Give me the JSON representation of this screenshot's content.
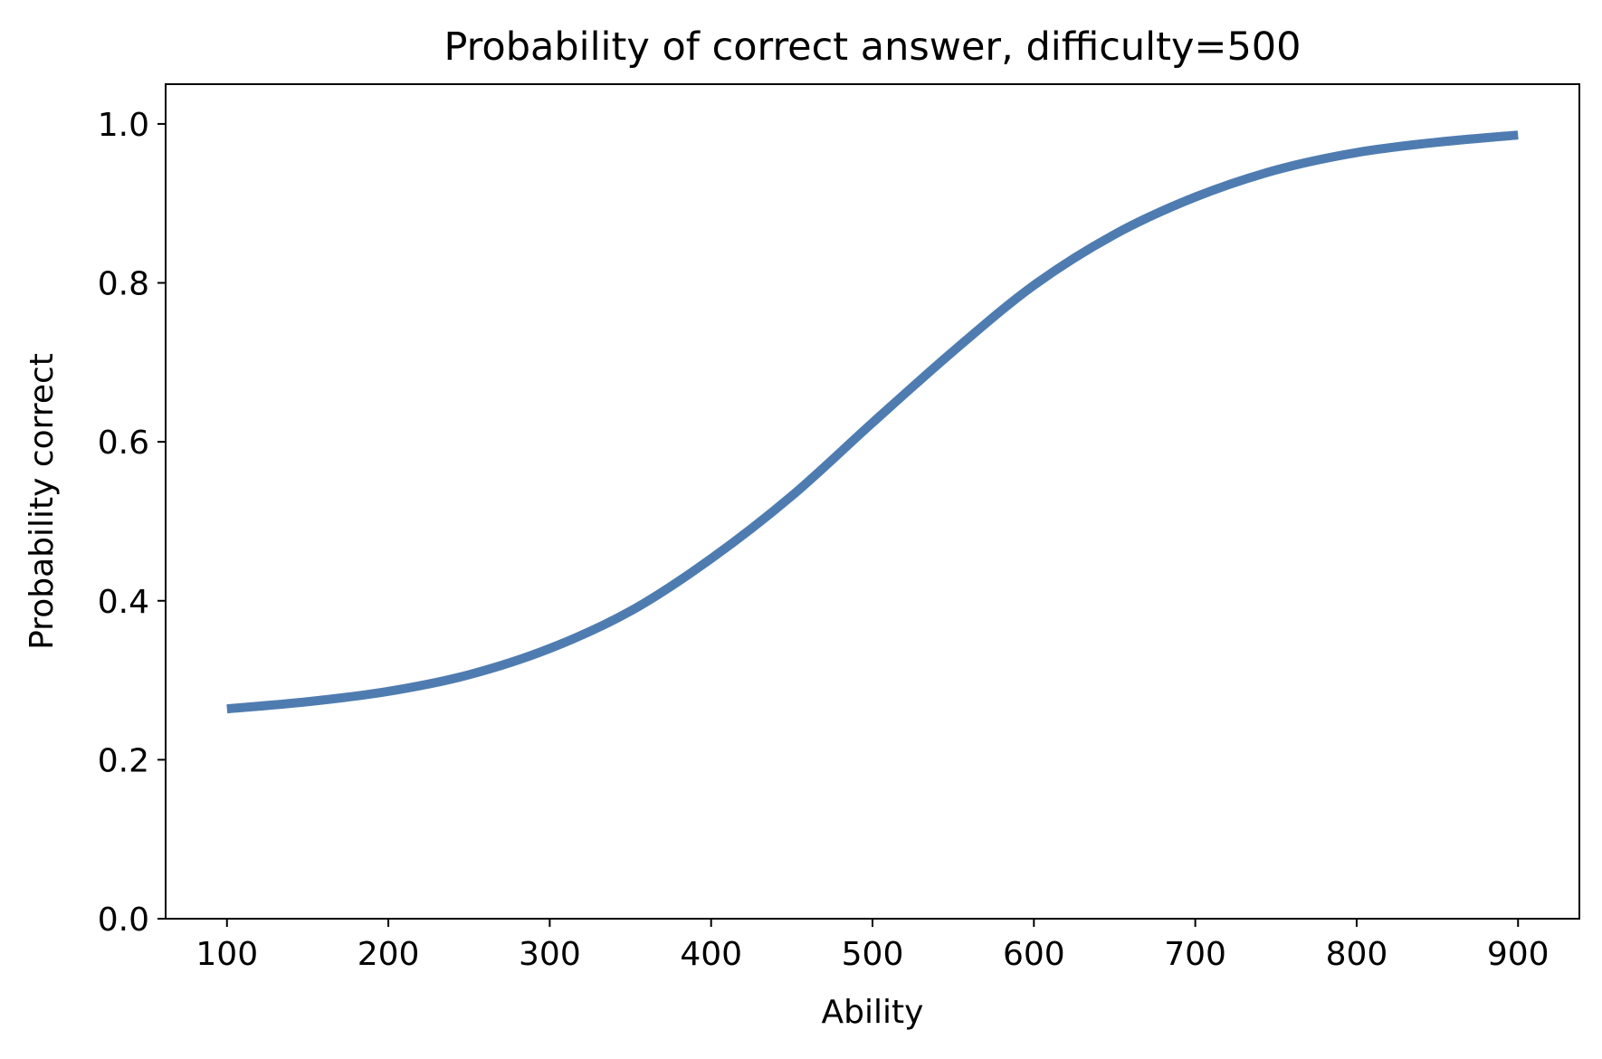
{
  "chart_data": {
    "type": "line",
    "title": "Probability of correct answer, difficulty=500",
    "xlabel": "Ability",
    "ylabel": "Probability correct",
    "xlim": [
      62,
      938
    ],
    "ylim": [
      0,
      1.05
    ],
    "xticks": [
      100,
      200,
      300,
      400,
      500,
      600,
      700,
      800,
      900
    ],
    "xtick_labels": [
      "100",
      "200",
      "300",
      "400",
      "500",
      "600",
      "700",
      "800",
      "900"
    ],
    "yticks": [
      0.0,
      0.2,
      0.4,
      0.6,
      0.8,
      1.0
    ],
    "ytick_labels": [
      "0.0",
      "0.2",
      "0.4",
      "0.6",
      "0.8",
      "1.0"
    ],
    "grid": false,
    "series": [
      {
        "color": "#4f7cb0",
        "x": [
          100,
          150,
          200,
          250,
          300,
          350,
          400,
          450,
          500,
          550,
          600,
          650,
          700,
          750,
          800,
          850,
          900
        ],
        "y": [
          0.264,
          0.273,
          0.286,
          0.307,
          0.34,
          0.387,
          0.453,
          0.532,
          0.624,
          0.714,
          0.797,
          0.861,
          0.908,
          0.942,
          0.964,
          0.977,
          0.986
        ]
      }
    ]
  }
}
